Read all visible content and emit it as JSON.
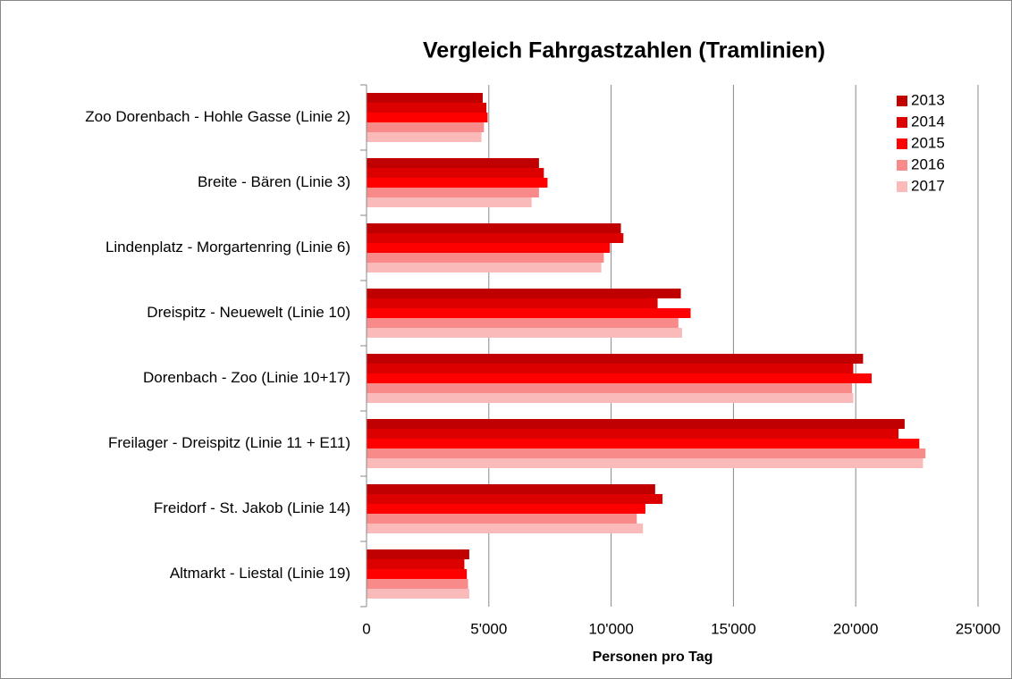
{
  "chart_data": {
    "type": "bar",
    "orientation": "horizontal",
    "title": "Vergleich Fahrgastzahlen (Tramlinien)",
    "x_label": "Personen pro Tag",
    "categories": [
      "Zoo Dorenbach - Hohle Gasse (Linie 2)",
      "Breite - Bären (Linie 3)",
      "Lindenplatz - Morgartenring (Linie 6)",
      "Dreispitz - Neuewelt (Linie 10)",
      "Dorenbach - Zoo (Linie 10+17)",
      "Freilager - Dreispitz (Linie 11 + E11)",
      "Freidorf - St. Jakob (Linie 14)",
      "Altmarkt - Liestal (Linie 19)"
    ],
    "series": [
      {
        "name": "2013",
        "color": "#c00000",
        "values": [
          4750,
          7050,
          10400,
          12850,
          20300,
          22000,
          11800,
          4200
        ]
      },
      {
        "name": "2014",
        "color": "#dc0000",
        "values": [
          4900,
          7250,
          10500,
          11900,
          19900,
          21750,
          12100,
          4000
        ]
      },
      {
        "name": "2015",
        "color": "#ff0000",
        "values": [
          4950,
          7400,
          9950,
          13250,
          20650,
          22600,
          11400,
          4100
        ]
      },
      {
        "name": "2016",
        "color": "#f98a8a",
        "values": [
          4800,
          7050,
          9700,
          12750,
          19850,
          22850,
          11050,
          4150
        ]
      },
      {
        "name": "2017",
        "color": "#fbbaba",
        "values": [
          4700,
          6750,
          9600,
          12900,
          19900,
          22750,
          11300,
          4200
        ]
      }
    ],
    "xlim": [
      0,
      25000
    ],
    "xticks": [
      0,
      {
        "value": 5000,
        "label": "5'000"
      },
      {
        "value": 10000,
        "label": "10'000"
      },
      {
        "value": 15000,
        "label": "15'000"
      },
      {
        "value": 20000,
        "label": "20'000"
      },
      {
        "value": 25000,
        "label": "25'000"
      }
    ],
    "grid": true,
    "legend": "top-right"
  }
}
